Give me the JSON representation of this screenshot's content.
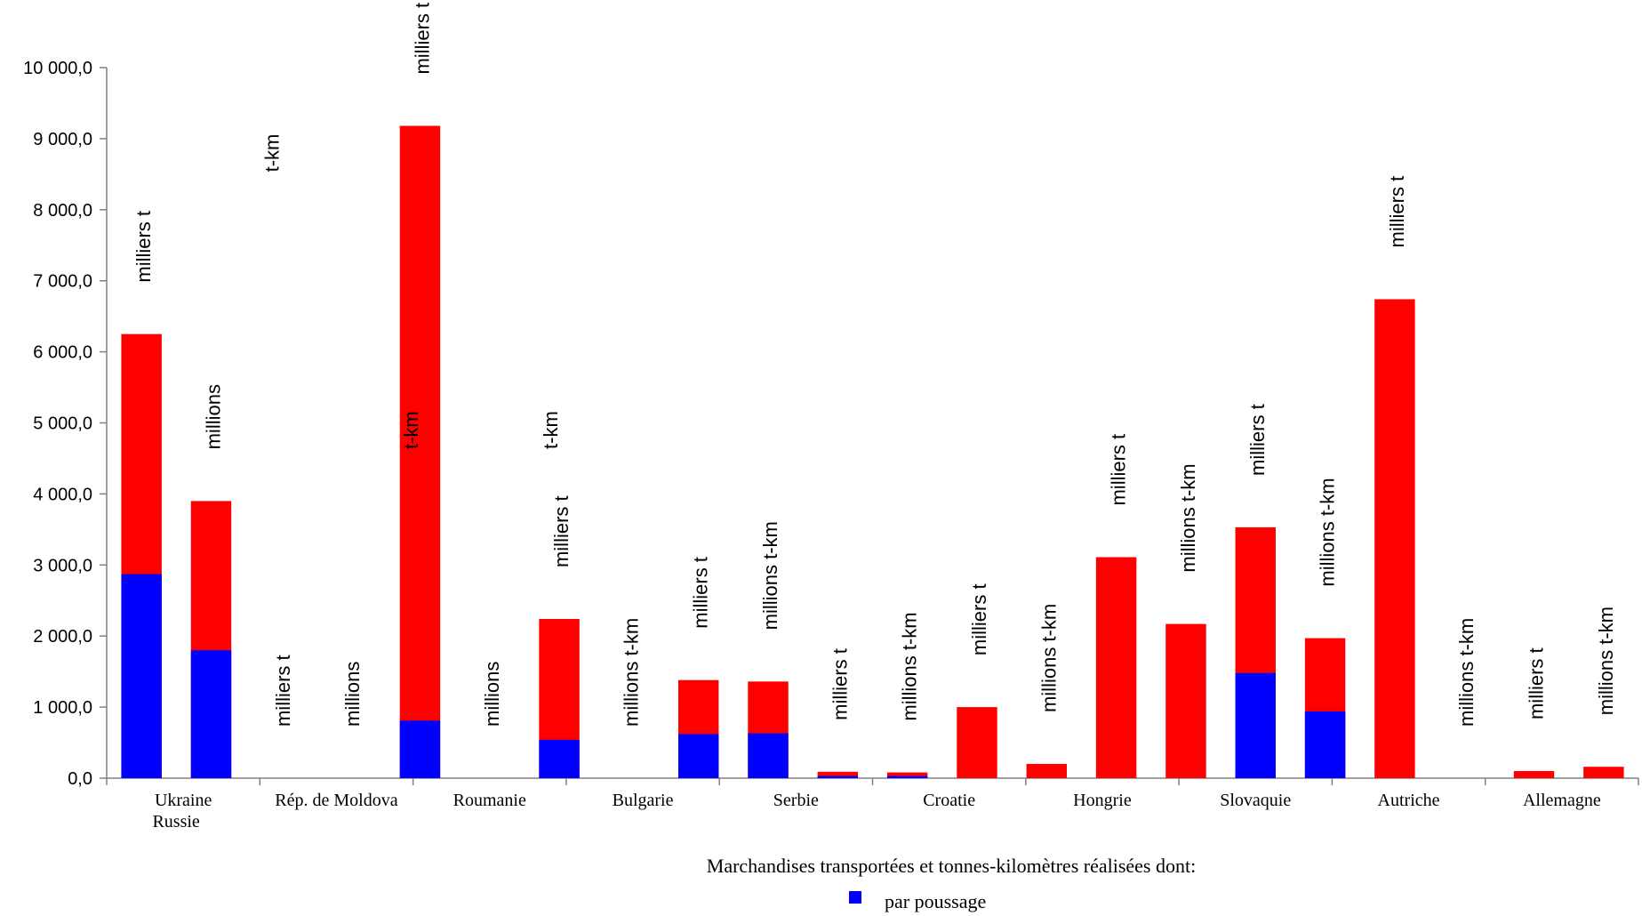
{
  "chart_data": {
    "type": "bar",
    "stacked": true,
    "ylim": [
      0,
      10000
    ],
    "yticks": [
      "0,0",
      "1 000,0",
      "2 000,0",
      "3 000,0",
      "4 000,0",
      "5 000,0",
      "6 000,0",
      "7 000,0",
      "8 000,0",
      "9 000,0",
      "10 000,0"
    ],
    "colors": {
      "poussage": "#0000ff",
      "rest": "#ff0000"
    },
    "groups": [
      {
        "name": "Ukraine",
        "name2": "Russie"
      },
      {
        "name": "Rép. de Moldova"
      },
      {
        "name": "Roumanie"
      },
      {
        "name": "Bulgarie"
      },
      {
        "name": "Serbie"
      },
      {
        "name": "Croatie"
      },
      {
        "name": "Hongrie"
      },
      {
        "name": "Slovaquie"
      },
      {
        "name": "Autriche"
      },
      {
        "name": "Allemagne"
      }
    ],
    "bars": [
      {
        "total": 6250,
        "poussage": 2870,
        "label": "milliers t"
      },
      {
        "total": 3900,
        "poussage": 1800,
        "label": "millions",
        "label2": "t-km"
      },
      {
        "total": 0,
        "poussage": 0,
        "label": "milliers t"
      },
      {
        "total": 0,
        "poussage": 0,
        "label": "millions",
        "label2": "t-km"
      },
      {
        "total": 9180,
        "poussage": 810,
        "label": "milliers t"
      },
      {
        "total": 0,
        "poussage": 0,
        "label": "millions",
        "label2": "t-km"
      },
      {
        "total": 2240,
        "poussage": 540,
        "label": "milliers t"
      },
      {
        "total": 0,
        "poussage": 0,
        "label": "millions t-km"
      },
      {
        "total": 1380,
        "poussage": 620,
        "label": "milliers t"
      },
      {
        "total": 1360,
        "poussage": 630,
        "label": "millions t-km"
      },
      {
        "total": 90,
        "poussage": 30,
        "label": "milliers t"
      },
      {
        "total": 80,
        "poussage": 30,
        "label": "millions t-km"
      },
      {
        "total": 1000,
        "poussage": 0,
        "label": "milliers t"
      },
      {
        "total": 200,
        "poussage": 0,
        "label": "millions t-km"
      },
      {
        "total": 3110,
        "poussage": 0,
        "label": "milliers t"
      },
      {
        "total": 2170,
        "poussage": 0,
        "label": "millions t-km"
      },
      {
        "total": 3530,
        "poussage": 1480,
        "label": "milliers t"
      },
      {
        "total": 1970,
        "poussage": 940,
        "label": "millions t-km"
      },
      {
        "total": 6740,
        "poussage": 0,
        "label": "milliers t"
      },
      {
        "total": 0,
        "poussage": 0,
        "label": "millions t-km"
      },
      {
        "total": 100,
        "poussage": 0,
        "label": "milliers t"
      },
      {
        "total": 160,
        "poussage": 0,
        "label": "millions t-km"
      }
    ],
    "legend": {
      "title": "Marchandises transportées et tonnes-kilomètres réalisées dont:",
      "entries": [
        {
          "label": "par poussage",
          "color": "#0000ff"
        }
      ]
    }
  }
}
